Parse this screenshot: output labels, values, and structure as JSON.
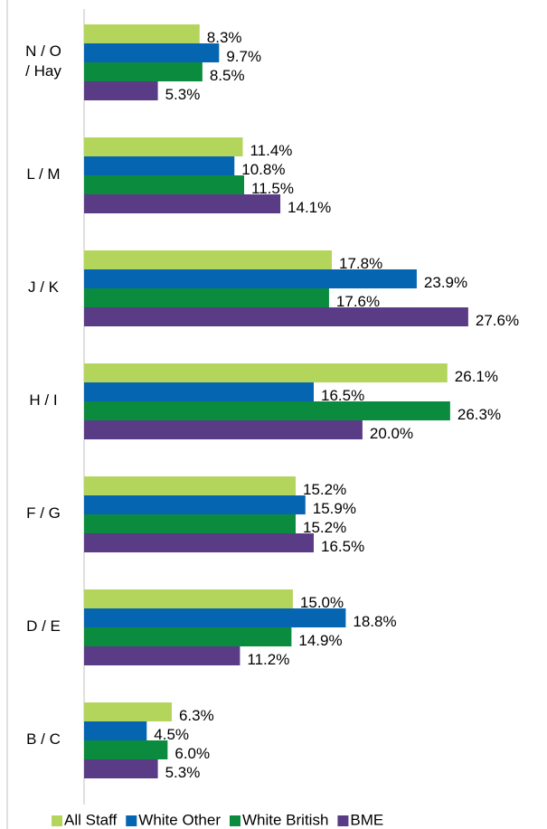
{
  "chart_data": {
    "type": "hbar",
    "categories": [
      "N / O\n/ Hay",
      "L / M",
      "J / K",
      "H / I",
      "F / G",
      "D / E",
      "B / C"
    ],
    "series": [
      {
        "name": "All Staff",
        "color": "#b3d55b",
        "values": [
          8.3,
          11.4,
          17.8,
          26.1,
          15.2,
          15.0,
          6.3
        ],
        "value_labels": [
          "8.3%",
          "11.4%",
          "17.8%",
          "26.1%",
          "15.2%",
          "15.0%",
          "6.3%"
        ]
      },
      {
        "name": "White Other",
        "color": "#0565b1",
        "values": [
          9.7,
          10.8,
          23.9,
          16.5,
          15.9,
          18.8,
          4.5
        ],
        "value_labels": [
          "9.7%",
          "10.8%",
          "23.9%",
          "16.5%",
          "15.9%",
          "18.8%",
          "4.5%"
        ]
      },
      {
        "name": "White British",
        "color": "#0b8b3d",
        "values": [
          8.5,
          11.5,
          17.6,
          26.3,
          15.2,
          14.9,
          6.0
        ],
        "value_labels": [
          "8.5%",
          "11.5%",
          "17.6%",
          "26.3%",
          "15.2%",
          "14.9%",
          "6.0%"
        ]
      },
      {
        "name": "BME",
        "color": "#5a3b86",
        "values": [
          5.3,
          14.1,
          27.6,
          20.0,
          16.5,
          11.2,
          5.3
        ],
        "value_labels": [
          "5.3%",
          "14.1%",
          "27.6%",
          "20.0%",
          "16.5%",
          "11.2%",
          "5.3%"
        ]
      }
    ],
    "xlim": [
      0,
      33
    ],
    "legend": "bottom"
  }
}
